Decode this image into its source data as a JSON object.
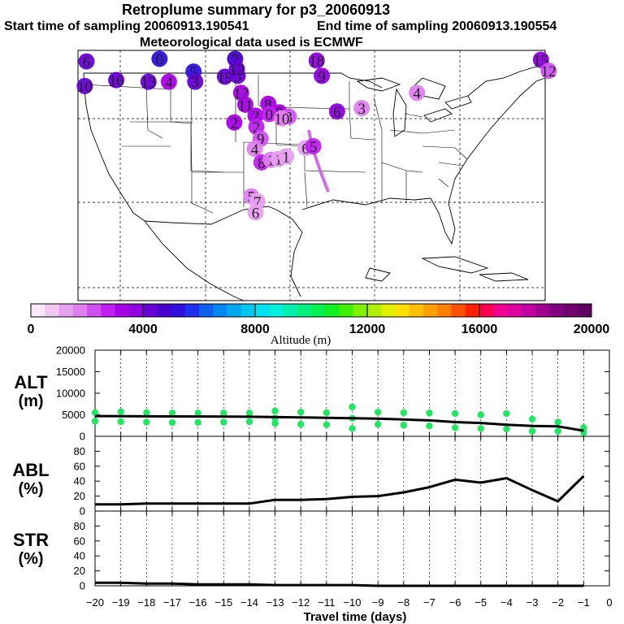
{
  "title": {
    "line1": "Retroplume summary for p3_20060913",
    "start_label": "Start time of sampling 20060913.190541",
    "end_label": "End time of sampling 20060913.190554",
    "met_label": "Meteorological data used is ECMWF"
  },
  "map": {
    "plume_markers": [
      {
        "label": "6",
        "lon": -124.0,
        "lat": 48.7,
        "alt": 4300
      },
      {
        "label": "0",
        "lon": -115.4,
        "lat": 49.0,
        "alt": 5200
      },
      {
        "label": "5",
        "lon": -111.4,
        "lat": 47.5,
        "alt": 5400
      },
      {
        "label": "3",
        "lon": -111.2,
        "lat": 46.3,
        "alt": 4200
      },
      {
        "label": "16",
        "lon": -120.5,
        "lat": 46.5,
        "alt": 4200
      },
      {
        "label": "13",
        "lon": -116.7,
        "lat": 46.3,
        "alt": 4200
      },
      {
        "label": "4",
        "lon": -114.3,
        "lat": 46.3,
        "alt": 3300
      },
      {
        "label": "10",
        "lon": -124.2,
        "lat": 45.8,
        "alt": 4200
      },
      {
        "label": "7",
        "lon": -106.5,
        "lat": 49.0,
        "alt": 4600
      },
      {
        "label": "19",
        "lon": -107.7,
        "lat": 46.9,
        "alt": 4200
      },
      {
        "label": "3",
        "lon": -106.2,
        "lat": 47.0,
        "alt": 4100
      },
      {
        "label": "12",
        "lon": -106.3,
        "lat": 47.8,
        "alt": 4100
      },
      {
        "label": "18",
        "lon": -96.9,
        "lat": 48.8,
        "alt": 3700
      },
      {
        "label": "9",
        "lon": -96.3,
        "lat": 47.0,
        "alt": 3700
      },
      {
        "label": "15",
        "lon": -70.5,
        "lat": 48.9,
        "alt": 3600
      },
      {
        "label": "12",
        "lon": -69.6,
        "lat": 47.6,
        "alt": 2400
      },
      {
        "label": "4",
        "lon": -85.1,
        "lat": 45.0,
        "alt": 1600
      },
      {
        "label": "3",
        "lon": -91.6,
        "lat": 43.2,
        "alt": 1600
      },
      {
        "label": "6",
        "lon": -94.5,
        "lat": 42.8,
        "alt": 3500
      },
      {
        "label": "12",
        "lon": -105.8,
        "lat": 45.0,
        "alt": 3300
      },
      {
        "label": "11",
        "lon": -105.3,
        "lat": 43.6,
        "alt": 3300
      },
      {
        "label": "8",
        "lon": -102.6,
        "lat": 43.7,
        "alt": 3300
      },
      {
        "label": "2",
        "lon": -106.6,
        "lat": 41.5,
        "alt": 3300
      },
      {
        "label": "2",
        "lon": -104.1,
        "lat": 42.3,
        "alt": 3300
      },
      {
        "label": "8",
        "lon": -101.3,
        "lat": 42.7,
        "alt": 3000
      },
      {
        "label": "0",
        "lon": -102.5,
        "lat": 42.5,
        "alt": 2800
      },
      {
        "label": "3",
        "lon": -100.2,
        "lat": 42.2,
        "alt": 2400
      },
      {
        "label": "10",
        "lon": -101.0,
        "lat": 42.0,
        "alt": 1800
      },
      {
        "label": "2",
        "lon": -104.0,
        "lat": 41.0,
        "alt": 2600
      },
      {
        "label": "9",
        "lon": -103.5,
        "lat": 39.6,
        "alt": 2300
      },
      {
        "label": "4",
        "lon": -104.2,
        "lat": 38.4,
        "alt": 1600
      },
      {
        "label": "6",
        "lon": -98.2,
        "lat": 38.5,
        "alt": 1400
      },
      {
        "label": "5",
        "lon": -97.3,
        "lat": 38.7,
        "alt": 2600
      },
      {
        "label": "8",
        "lon": -103.4,
        "lat": 36.8,
        "alt": 2900
      },
      {
        "label": "1",
        "lon": -102.3,
        "lat": 37.1,
        "alt": 1900
      },
      {
        "label": "1",
        "lon": -101.4,
        "lat": 37.2,
        "alt": 1300
      },
      {
        "label": "1",
        "lon": -100.5,
        "lat": 37.5,
        "alt": 1200
      },
      {
        "label": "5",
        "lon": -104.6,
        "lat": 32.8,
        "alt": 1500
      },
      {
        "label": "7",
        "lon": -103.9,
        "lat": 32.2,
        "alt": 1400
      },
      {
        "label": "6",
        "lon": -104.1,
        "lat": 30.9,
        "alt": 1400
      }
    ]
  },
  "colorbar": {
    "title": "Altitude (m)",
    "ticks": [
      "0",
      "4000",
      "8000",
      "12000",
      "16000",
      "20000"
    ],
    "range": [
      0,
      20000
    ],
    "colors": [
      "#f8e8f8",
      "#f0c8f0",
      "#e8a0f0",
      "#e080f0",
      "#d050f0",
      "#c020f0",
      "#a800e8",
      "#9000e0",
      "#6800d8",
      "#4800d0",
      "#3010e0",
      "#2030f0",
      "#1060f0",
      "#0088f0",
      "#00a8f0",
      "#00c8f0",
      "#00e0f0",
      "#00f0e0",
      "#00f0b0",
      "#00f080",
      "#00f050",
      "#10f020",
      "#40f000",
      "#80f000",
      "#b0f000",
      "#e0f000",
      "#ffe000",
      "#ffc000",
      "#ffa000",
      "#ff8000",
      "#ff5000",
      "#ff2000",
      "#ff0050",
      "#f00090",
      "#e000a0",
      "#c000a0",
      "#a00090",
      "#800080",
      "#700070",
      "#600060"
    ]
  },
  "panels": {
    "alt_label": [
      "ALT",
      "(m)"
    ],
    "abl_label": [
      "ABL",
      "(%)"
    ],
    "str_label": [
      "STR",
      "(%)"
    ],
    "alt_ticks": [
      "0",
      "5000",
      "10000",
      "15000",
      "20000"
    ],
    "pct_ticks": [
      "0",
      "20",
      "40",
      "60",
      "80"
    ],
    "x_ticks": [
      "−20",
      "−19",
      "−18",
      "−17",
      "−16",
      "−15",
      "−14",
      "−13",
      "−12",
      "−11",
      "−10",
      "−9",
      "−8",
      "−7",
      "−6",
      "−5",
      "−4",
      "−3",
      "−2",
      "−1",
      "0"
    ],
    "xlabel": "Travel time (days)"
  },
  "chart_data": [
    {
      "type": "line",
      "panel": "ALT",
      "ylabel": "ALT (m)",
      "xlabel": "Travel time (days)",
      "xlim": [
        -20,
        0
      ],
      "ylim": [
        0,
        20000
      ],
      "series": [
        {
          "name": "Median altitude",
          "x": [
            -20,
            -18,
            -16,
            -14,
            -12,
            -10,
            -9,
            -8,
            -7,
            -6,
            -5,
            -4,
            -3,
            -2,
            -1
          ],
          "values": [
            4700,
            4650,
            4600,
            4550,
            4400,
            4200,
            4100,
            3900,
            3700,
            3300,
            3100,
            2700,
            2400,
            2300,
            1300
          ]
        },
        {
          "name": "Particle altitudes (scatter)",
          "x": [
            -20,
            -20,
            -19,
            -19,
            -18,
            -18,
            -17,
            -17,
            -16,
            -16,
            -15,
            -15,
            -14,
            -14,
            -13,
            -13,
            -13,
            -12,
            -12,
            -11,
            -11,
            -10,
            -10,
            -10,
            -9,
            -9,
            -8,
            -8,
            -7,
            -7,
            -6,
            -6,
            -5,
            -5,
            -4,
            -4,
            -3,
            -3,
            -2,
            -2,
            -1,
            -1
          ],
          "values": [
            5500,
            3500,
            5700,
            3400,
            5500,
            3300,
            5400,
            3200,
            5400,
            3200,
            5400,
            3300,
            5400,
            3400,
            5900,
            4200,
            3000,
            5600,
            2800,
            5500,
            2700,
            6800,
            4200,
            1800,
            5600,
            2800,
            5500,
            2600,
            5400,
            2400,
            5300,
            2000,
            5000,
            1800,
            5300,
            1700,
            4000,
            1200,
            3300,
            1200,
            2000,
            900
          ]
        }
      ]
    },
    {
      "type": "line",
      "panel": "ABL",
      "ylabel": "ABL (%)",
      "xlabel": "Travel time (days)",
      "xlim": [
        -20,
        0
      ],
      "ylim": [
        0,
        100
      ],
      "series": [
        {
          "name": "ABL fraction",
          "x": [
            -20,
            -19,
            -18,
            -17,
            -16,
            -15,
            -14,
            -13,
            -12,
            -11,
            -10,
            -9,
            -8,
            -7,
            -6,
            -5,
            -4,
            -3,
            -2,
            -1
          ],
          "values": [
            9,
            9,
            10,
            10,
            10,
            10,
            10,
            15,
            15,
            16,
            19,
            20,
            25,
            32,
            42,
            38,
            44,
            28,
            13,
            47
          ]
        }
      ]
    },
    {
      "type": "line",
      "panel": "STR",
      "ylabel": "STR (%)",
      "xlabel": "Travel time (days)",
      "xlim": [
        -20,
        0
      ],
      "ylim": [
        0,
        100
      ],
      "series": [
        {
          "name": "Stratospheric fraction",
          "x": [
            -20,
            -19,
            -18,
            -17,
            -16,
            -15,
            -14,
            -13,
            -12,
            -11,
            -10,
            -9,
            -8,
            -7,
            -6,
            -5,
            -4,
            -3,
            -2,
            -1
          ],
          "values": [
            4,
            4,
            3,
            3,
            2,
            2,
            2,
            1,
            1,
            1,
            1,
            0,
            0,
            0,
            0,
            0,
            0,
            0,
            0,
            0
          ]
        }
      ]
    }
  ]
}
